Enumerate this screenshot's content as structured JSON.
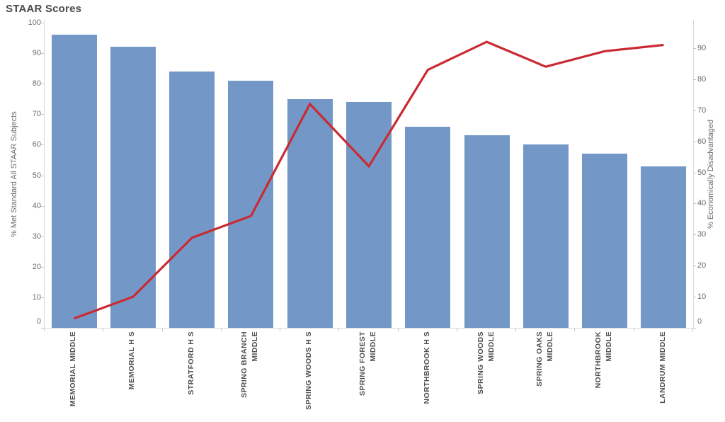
{
  "title": "STAAR Scores",
  "left_axis": {
    "title": "% Met Standard All STAAR Subjects",
    "ticks": [
      0,
      10,
      20,
      30,
      40,
      50,
      60,
      70,
      80,
      90,
      100
    ]
  },
  "right_axis": {
    "title": "% Economically Disadvantaged",
    "ticks": [
      0,
      10,
      20,
      30,
      40,
      50,
      60,
      70,
      80,
      90
    ]
  },
  "chart_data": {
    "type": "bar",
    "subtype": "dual-axis bar + line combo",
    "title": "STAAR Scores",
    "categories": [
      [
        "MEMORIAL MIDDLE"
      ],
      [
        "MEMORIAL H S"
      ],
      [
        "STRATFORD H S"
      ],
      [
        "SPRING BRANCH",
        "MIDDLE"
      ],
      [
        "SPRING WOODS H S"
      ],
      [
        "SPRING FOREST",
        "MIDDLE"
      ],
      [
        "NORTHBROOK H S"
      ],
      [
        "SPRING WOODS",
        "MIDDLE"
      ],
      [
        "SPRING OAKS",
        "MIDDLE"
      ],
      [
        "NORTHBROOK",
        "MIDDLE"
      ],
      [
        "LANDRUM MIDDLE"
      ]
    ],
    "series": [
      {
        "name": "% Met Standard All STAAR Subjects",
        "type": "bar",
        "axis": "left",
        "color": "#7398c7",
        "values": [
          96,
          92,
          84,
          81,
          75,
          74,
          66,
          63,
          60,
          57,
          53
        ]
      },
      {
        "name": "% Economically Disadvantaged",
        "type": "line",
        "axis": "right",
        "color": "#ca2a32",
        "values": [
          3,
          10,
          29,
          36,
          72,
          52,
          83,
          92,
          84,
          89,
          91
        ]
      }
    ],
    "left_ylim": [
      0,
      100
    ],
    "right_ylim": [
      0,
      99
    ],
    "grid": false,
    "legend": false,
    "x_tick_rotation": 90
  },
  "colors": {
    "bar": "#7398c7",
    "line": "#ca2a32",
    "axis_line": "#d9d9d9",
    "tick_mark": "#c3c3c3",
    "tick_text": "#6d6d6d",
    "category_text": "#4d4d4d",
    "title_text": "#4a4a4a",
    "background": "#ffffff"
  }
}
